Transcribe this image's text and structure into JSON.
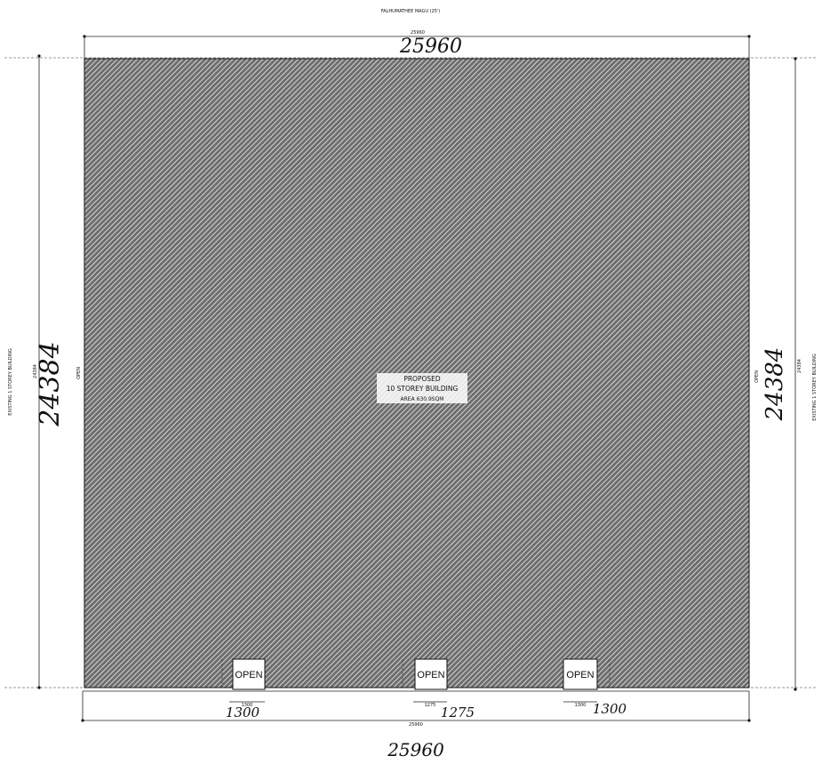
{
  "road_label": "FALHUMATHEE MAGU (25')",
  "top_dimension": {
    "printed": "25960",
    "handwritten": "25960"
  },
  "bottom_dimension": {
    "printed": "25960",
    "handwritten": "25960"
  },
  "left_dimension": {
    "printed": "24384",
    "handwritten": "24384"
  },
  "right_dimension": {
    "printed": "24384",
    "handwritten": "24384"
  },
  "left_neighbor_label": "EXISTING 1 STOREY BUILDING",
  "right_neighbor_label": "EXISTING 1 STOREY BUILDING",
  "left_open_label": "OPEN",
  "right_open_label": "OPEN",
  "building_label": {
    "line1": "PROPOSED",
    "line2": "10 STOREY BUILDING",
    "line3": "AREA 630.9SQM"
  },
  "openings": [
    {
      "label": "OPEN",
      "printed_width": "1300",
      "handwritten_width": "1300"
    },
    {
      "label": "OPEN",
      "printed_width": "1275",
      "handwritten_width": "1275"
    },
    {
      "label": "OPEN",
      "printed_width": "1300",
      "handwritten_width": "1300"
    }
  ],
  "colors": {
    "hatch_background": "#6e6e6e",
    "hatch_line": "#ffffff",
    "ink": "#111111"
  }
}
